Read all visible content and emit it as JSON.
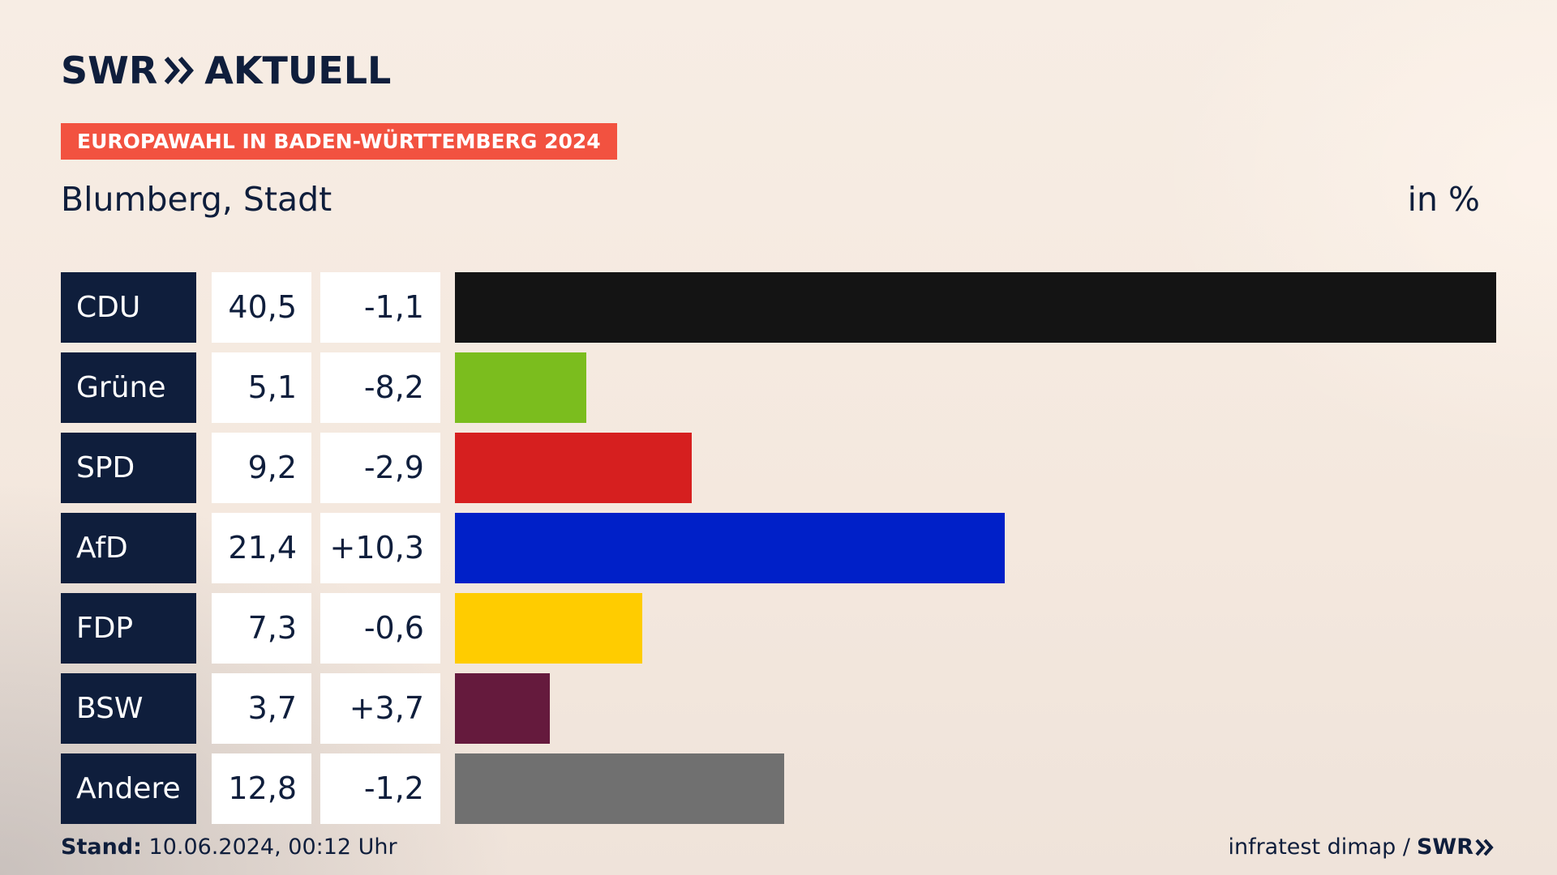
{
  "header": {
    "brand_left": "SWR",
    "brand_right": "AKTUELL",
    "tagline": "EUROPAWAHL IN BADEN-WÜRTTEMBERG 2024",
    "region": "Blumberg, Stadt",
    "unit": "in %"
  },
  "chart_data": {
    "type": "bar",
    "orientation": "horizontal",
    "categories": [
      "CDU",
      "Grüne",
      "SPD",
      "AfD",
      "FDP",
      "BSW",
      "Andere"
    ],
    "values": [
      40.5,
      5.1,
      9.2,
      21.4,
      7.3,
      3.7,
      12.8
    ],
    "values_text": [
      "40,5",
      "5,1",
      "9,2",
      "21,4",
      "7,3",
      "3,7",
      "12,8"
    ],
    "changes_text": [
      "-1,1",
      "-8,2",
      "-2,9",
      "+10,3",
      "-0,6",
      "+3,7",
      "-1,2"
    ],
    "colors": [
      "#141414",
      "#7bbd1e",
      "#d61f1f",
      "#0020c8",
      "#ffcc00",
      "#651a3d",
      "#707070"
    ],
    "title": "Blumberg, Stadt",
    "unit": "in %",
    "xlim": [
      0,
      40.5
    ],
    "grid": false
  },
  "footer": {
    "stand_label": "Stand:",
    "stand_value": "10.06.2024, 00:12 Uhr",
    "source": "infratest dimap /",
    "source_brand": "SWR"
  },
  "colors": {
    "navy": "#0f1e3c",
    "tag_red": "#f25240"
  },
  "icons": {
    "logo_chevrons": "double-chevron-right-icon"
  }
}
